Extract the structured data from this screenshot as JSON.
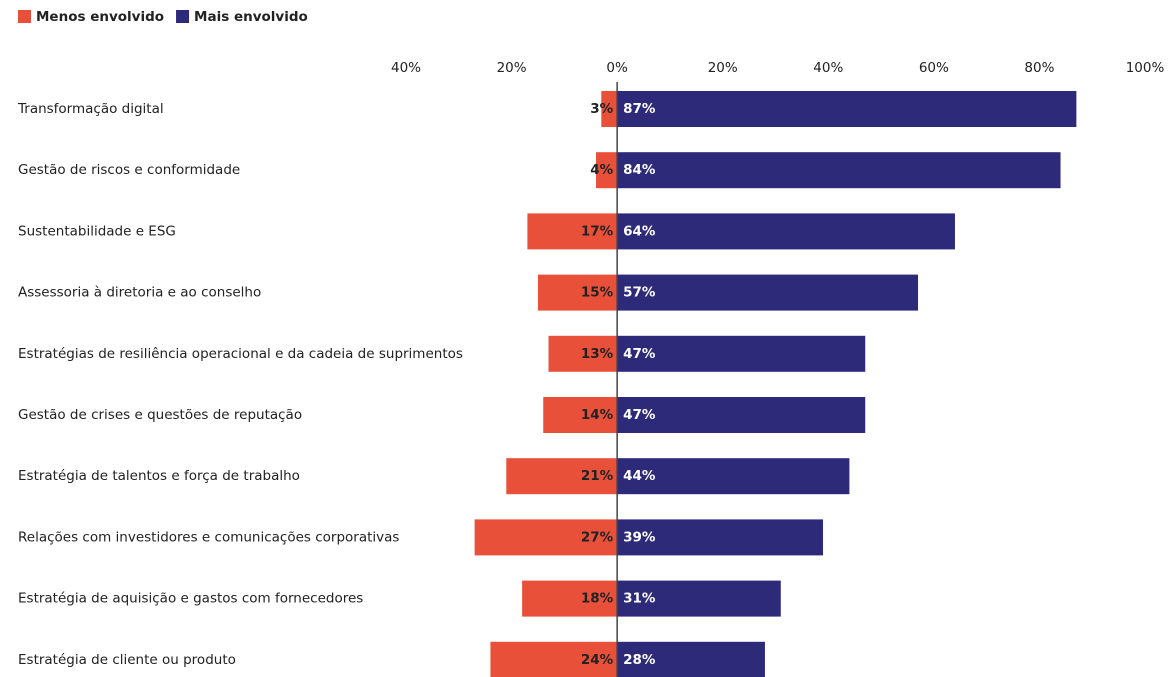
{
  "chart_data": {
    "type": "diverging-bar",
    "categories": [
      "Transformação digital",
      "Gestão de riscos e conformidade",
      "Sustentabilidade e ESG",
      "Assessoria à diretoria e ao conselho",
      "Estratégias de resiliência operacional e da cadeia de suprimentos",
      "Gestão de crises e questões de reputação",
      "Estratégia de talentos e força de trabalho",
      "Relações com investidores e comunicações corporativas",
      "Estratégia de aquisição e gastos com fornecedores",
      "Estratégia de cliente ou produto"
    ],
    "series": [
      {
        "name": "Menos envolvido",
        "color": "#e8503a",
        "values": [
          -3,
          -4,
          -17,
          -15,
          -13,
          -14,
          -21,
          -27,
          -18,
          -24
        ],
        "value_labels": [
          "3%",
          "4%",
          "17%",
          "15%",
          "13%",
          "14%",
          "21%",
          "27%",
          "18%",
          "24%"
        ]
      },
      {
        "name": "Mais envolvido",
        "color": "#2d2a7a",
        "values": [
          87,
          84,
          64,
          57,
          47,
          47,
          44,
          39,
          31,
          28
        ],
        "value_labels": [
          "87%",
          "84%",
          "64%",
          "57%",
          "47%",
          "47%",
          "44%",
          "39%",
          "31%",
          "28%"
        ]
      }
    ],
    "xlim": [
      -40,
      100
    ],
    "xticks": [
      {
        "value": -40,
        "label": "40%"
      },
      {
        "value": -20,
        "label": "20%"
      },
      {
        "value": 0,
        "label": "0%"
      },
      {
        "value": 20,
        "label": "20%"
      },
      {
        "value": 40,
        "label": "40%"
      },
      {
        "value": 60,
        "label": "60%"
      },
      {
        "value": 80,
        "label": "80%"
      },
      {
        "value": 100,
        "label": "100%"
      }
    ],
    "grid": false,
    "legend": "top-left"
  }
}
